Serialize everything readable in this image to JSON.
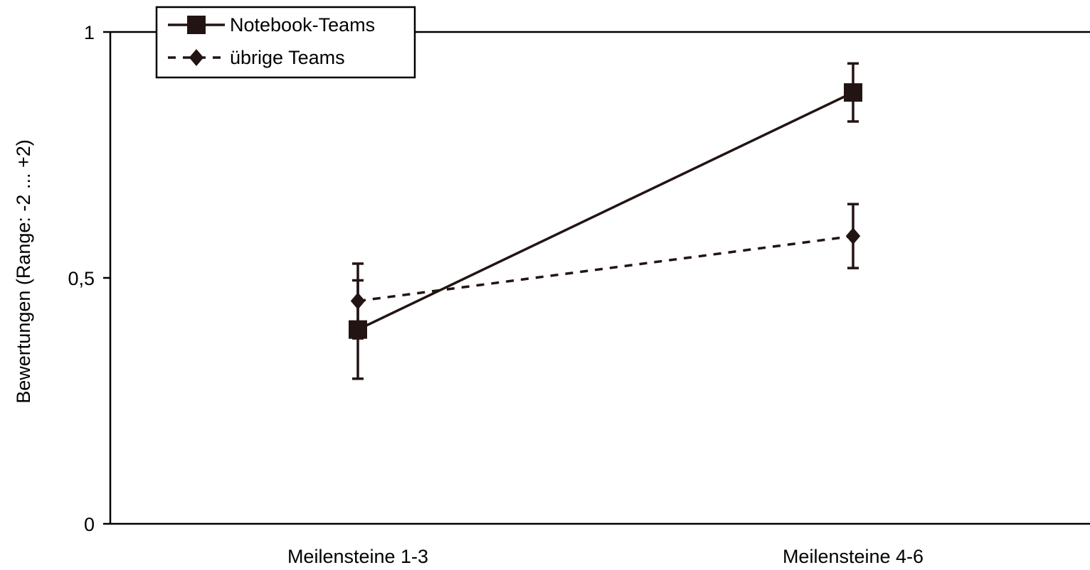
{
  "chart_data": {
    "type": "line",
    "title": "",
    "xlabel": "",
    "ylabel": "Bewertungen (Range: -2 ... +2)",
    "categories": [
      "Meilensteine 1-3",
      "Meilensteine 4-6"
    ],
    "ylim": [
      0,
      1
    ],
    "yticks": [
      {
        "value": 0,
        "label": "0"
      },
      {
        "value": 0.5,
        "label": "0,5"
      },
      {
        "value": 1,
        "label": "1"
      }
    ],
    "grid": false,
    "legend_position": "top-left",
    "series": [
      {
        "name": "Notebook-Teams",
        "marker": "square",
        "line": "solid",
        "values": [
          0.395,
          0.877
        ],
        "error_low": [
          0.295,
          0.818
        ],
        "error_high": [
          0.495,
          0.936
        ]
      },
      {
        "name": "übrige Teams",
        "marker": "diamond",
        "line": "dotted",
        "values": [
          0.453,
          0.585
        ],
        "error_low": [
          0.377,
          0.52
        ],
        "error_high": [
          0.529,
          0.65
        ]
      }
    ],
    "colors": {
      "series": "#231414",
      "axis": "#000000"
    }
  }
}
